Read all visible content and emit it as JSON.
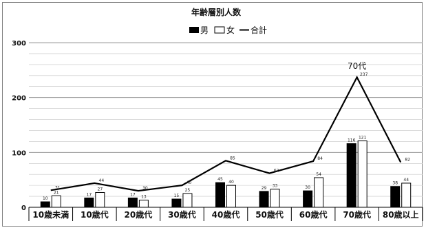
{
  "chart_data": {
    "type": "bar",
    "title": "年齢層別人数",
    "categories": [
      "10歳未満",
      "10歳代",
      "20歳代",
      "30歳代",
      "40歳代",
      "50歳代",
      "60歳代",
      "70歳代",
      "80歳以上"
    ],
    "series": [
      {
        "name": "男",
        "type": "bar",
        "color": "#000000",
        "values": [
          10,
          17,
          17,
          15,
          45,
          29,
          30,
          116,
          38
        ]
      },
      {
        "name": "女",
        "type": "bar",
        "color": "#ffffff",
        "values": [
          21,
          27,
          13,
          25,
          40,
          33,
          54,
          121,
          44
        ]
      },
      {
        "name": "合計",
        "type": "line",
        "color": "#000000",
        "values": [
          31,
          44,
          30,
          40,
          85,
          62,
          84,
          237,
          82
        ]
      }
    ],
    "ylim": [
      0,
      300
    ],
    "yticks": [
      0,
      100,
      200,
      300
    ],
    "minor_gridlines": true,
    "legend_position": "top-center",
    "annotations": [
      {
        "text": "70代",
        "category": "70歳代"
      }
    ]
  }
}
